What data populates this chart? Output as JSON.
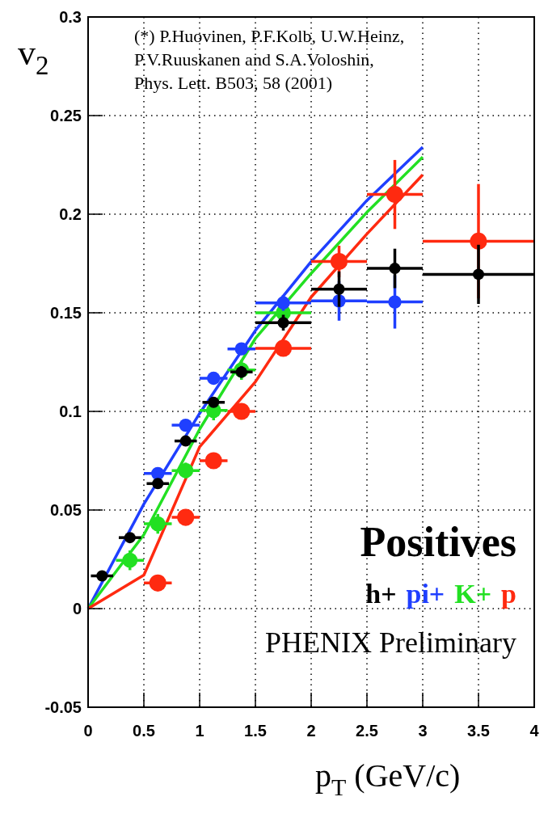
{
  "chart_data": {
    "type": "scatter",
    "xlabel": "p$_{T}$ (GeV/c)",
    "ylabel": "v$_{2}$",
    "legend_title": "Positives",
    "legend": "bottom right",
    "grid": true,
    "marker": "circle",
    "xlim": [
      0,
      4
    ],
    "xticks": [
      0,
      0.5,
      1,
      1.5,
      2,
      2.5,
      3,
      3.5,
      4
    ],
    "ylim": [
      -0.05,
      0.3
    ],
    "yticks": [
      -0.05,
      0,
      0.05,
      0.1,
      0.15,
      0.2,
      0.25,
      0.3
    ],
    "annotations": [
      "(*) P.Huovinen, P.F.Kolb, U.W.Heinz,\nP.V.Ruuskanen and S.A.Voloshin,\nPhys. Lett. B503, 58 (2001)",
      "PHENIX Preliminary"
    ],
    "series": [
      {
        "type": "line",
        "color": "#1f3fff",
        "x": [
          0,
          0.5,
          1,
          1.5,
          2,
          2.5,
          3
        ],
        "values": [
          0,
          0.053,
          0.099,
          0.141,
          0.176,
          0.207,
          0.234
        ],
        "line_style": "solid",
        "marker": "none"
      },
      {
        "type": "line",
        "color": "#22e022",
        "x": [
          0,
          0.5,
          1,
          1.5,
          2,
          2.5,
          3
        ],
        "values": [
          0,
          0.0375,
          0.091,
          0.137,
          0.17,
          0.201,
          0.229
        ],
        "line_style": "solid",
        "marker": "none"
      },
      {
        "type": "line",
        "color": "#ff2a10",
        "x": [
          0,
          0.5,
          1,
          1.5,
          2,
          2.5,
          3
        ],
        "values": [
          0,
          0.017,
          0.082,
          0.115,
          0.158,
          0.19,
          0.22
        ],
        "line_style": "solid",
        "marker": "none"
      },
      {
        "name": "h+",
        "color": "#000000",
        "x": [
          0.125,
          0.375,
          0.625,
          0.875,
          1.125,
          1.375,
          1.75,
          2.25,
          2.75,
          3.5
        ],
        "values": [
          0.0166,
          0.036,
          0.0634,
          0.085,
          0.1046,
          0.12,
          0.145,
          0.162,
          0.1725,
          0.1695
        ],
        "errors": [
          0.002,
          0.002,
          0.002,
          0.002,
          0.002,
          0.003,
          0.004,
          0.009,
          0.01,
          0.015
        ],
        "xerrors": [
          0.1,
          0.1,
          0.1,
          0.1,
          0.1,
          0.1,
          0.25,
          0.25,
          0.25,
          0.5
        ]
      },
      {
        "name": "pi+",
        "color": "#1f3fff",
        "x": [
          0.625,
          0.875,
          1.125,
          1.375,
          1.75,
          2.25,
          2.75
        ],
        "values": [
          0.0685,
          0.093,
          0.1168,
          0.1317,
          0.155,
          0.156,
          0.1555
        ],
        "errors": [
          0.002,
          0.002,
          0.002,
          0.003,
          0.004,
          0.01,
          0.0135
        ],
        "xerrors": [
          0.125,
          0.125,
          0.125,
          0.125,
          0.25,
          0.25,
          0.25
        ]
      },
      {
        "name": "K+",
        "color": "#22e022",
        "x": [
          0.375,
          0.625,
          0.875,
          1.125,
          1.375,
          1.75
        ],
        "values": [
          0.0245,
          0.043,
          0.07,
          0.1005,
          0.121,
          0.15
        ],
        "errors": [
          0.005,
          0.005,
          0.004,
          0.005,
          0.005,
          null
        ],
        "xerrors": [
          0.125,
          0.125,
          0.125,
          0.125,
          0.125,
          0.25
        ]
      },
      {
        "name": "p",
        "color": "#ff2a10",
        "x": [
          0.625,
          0.875,
          1.125,
          1.375,
          1.75,
          2.25,
          2.75,
          3.5
        ],
        "values": [
          0.013,
          0.0463,
          0.075,
          0.1,
          0.132,
          0.176,
          0.21,
          0.1863
        ],
        "errors": [
          0.004,
          0.003,
          0.003,
          0.004,
          0.004,
          0.008,
          0.0175,
          0.029
        ],
        "xerrors": [
          0.125,
          0.125,
          0.125,
          0.125,
          0.25,
          0.25,
          0.25,
          0.5
        ]
      }
    ]
  }
}
